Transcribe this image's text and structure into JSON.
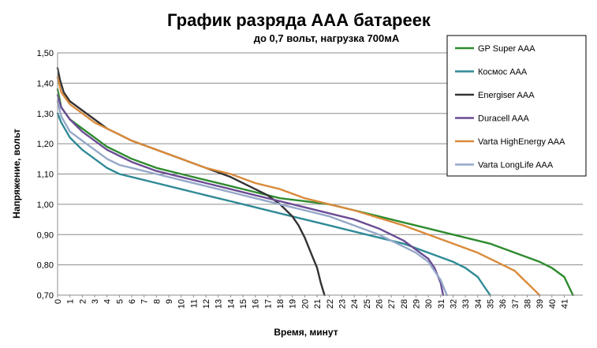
{
  "chart_data": {
    "type": "line",
    "title": "График разряда ААА батареек",
    "subtitle": "до 0,7 вольт, нагрузка 700мА",
    "xlabel": "Время, минут",
    "ylabel": "Напряжение, вольт",
    "xlim": [
      0,
      42.5
    ],
    "ylim": [
      0.7,
      1.5
    ],
    "ytick_step": 0.1,
    "y_tick_labels": [
      "0,70",
      "0,80",
      "0,90",
      "1,00",
      "1,10",
      "1,20",
      "1,30",
      "1,40",
      "1,50"
    ],
    "x_tick_labels": [
      "0",
      "1",
      "2",
      "3",
      "4",
      "5",
      "6",
      "7",
      "8",
      "9",
      "10",
      "11",
      "12",
      "13",
      "14",
      "15",
      "16",
      "17",
      "18",
      "19",
      "20",
      "21",
      "22",
      "23",
      "24",
      "25",
      "26",
      "27",
      "28",
      "29",
      "30",
      "31",
      "32",
      "33",
      "34",
      "35",
      "36",
      "37",
      "38",
      "39",
      "40",
      "41"
    ],
    "grid": "horizontal",
    "legend_position": "top-right",
    "series": [
      {
        "name": "GP Super AAA",
        "color": "#2e8b2e",
        "x": [
          0,
          0.3,
          1,
          2,
          3,
          4,
          5,
          6,
          8,
          10,
          12,
          14,
          16,
          18,
          20,
          22,
          24,
          26,
          28,
          30,
          32,
          34,
          35,
          36,
          37,
          38,
          39,
          40,
          41,
          41.7
        ],
        "y": [
          1.38,
          1.32,
          1.28,
          1.25,
          1.22,
          1.19,
          1.17,
          1.15,
          1.12,
          1.1,
          1.08,
          1.06,
          1.04,
          1.02,
          1.01,
          1.0,
          0.98,
          0.96,
          0.94,
          0.92,
          0.9,
          0.88,
          0.87,
          0.855,
          0.84,
          0.825,
          0.81,
          0.79,
          0.76,
          0.7
        ]
      },
      {
        "name": "Космос AAA",
        "color": "#2f8a96",
        "x": [
          0,
          0.3,
          1,
          2,
          3,
          4,
          5,
          6,
          8,
          10,
          12,
          14,
          16,
          18,
          20,
          22,
          24,
          26,
          28,
          30,
          32,
          33,
          34,
          34.5,
          35
        ],
        "y": [
          1.3,
          1.27,
          1.22,
          1.18,
          1.15,
          1.12,
          1.1,
          1.09,
          1.07,
          1.05,
          1.03,
          1.01,
          0.99,
          0.97,
          0.95,
          0.93,
          0.91,
          0.89,
          0.87,
          0.84,
          0.81,
          0.79,
          0.76,
          0.73,
          0.7
        ]
      },
      {
        "name": "Energiser AAA",
        "color": "#333333",
        "x": [
          0,
          0.2,
          0.5,
          1,
          2,
          3,
          4,
          5,
          6,
          8,
          10,
          12,
          14,
          16,
          17,
          18,
          19,
          19.5,
          20,
          20.5,
          21,
          21.3,
          21.6
        ],
        "y": [
          1.45,
          1.41,
          1.37,
          1.34,
          1.31,
          1.28,
          1.25,
          1.23,
          1.21,
          1.18,
          1.15,
          1.12,
          1.09,
          1.05,
          1.03,
          1.0,
          0.96,
          0.93,
          0.89,
          0.84,
          0.79,
          0.74,
          0.7
        ]
      },
      {
        "name": "Duracell AAA",
        "color": "#6a4c93",
        "x": [
          0,
          0.3,
          1,
          2,
          3,
          4,
          5,
          6,
          8,
          10,
          12,
          14,
          16,
          18,
          20,
          22,
          24,
          26,
          28,
          29,
          30,
          30.5,
          31,
          31.2
        ],
        "y": [
          1.36,
          1.32,
          1.28,
          1.24,
          1.21,
          1.18,
          1.16,
          1.14,
          1.11,
          1.09,
          1.07,
          1.05,
          1.03,
          1.01,
          0.99,
          0.97,
          0.95,
          0.92,
          0.88,
          0.85,
          0.82,
          0.79,
          0.74,
          0.7
        ]
      },
      {
        "name": "Varta HighEnergy AAA",
        "color": "#d98a3a",
        "x": [
          0,
          0.3,
          1,
          2,
          3,
          4,
          5,
          6,
          8,
          10,
          12,
          14,
          16,
          18,
          20,
          22,
          24,
          26,
          28,
          30,
          32,
          34,
          35,
          36,
          37,
          37.5,
          38,
          38.5,
          39
        ],
        "y": [
          1.42,
          1.37,
          1.33,
          1.3,
          1.27,
          1.25,
          1.23,
          1.21,
          1.18,
          1.15,
          1.12,
          1.1,
          1.07,
          1.05,
          1.02,
          1.0,
          0.98,
          0.955,
          0.93,
          0.9,
          0.87,
          0.84,
          0.82,
          0.8,
          0.78,
          0.76,
          0.74,
          0.72,
          0.7
        ]
      },
      {
        "name": "Varta LongLife AAA",
        "color": "#95a8c9",
        "x": [
          0,
          0.3,
          1,
          2,
          3,
          4,
          5,
          6,
          7,
          8,
          10,
          12,
          14,
          16,
          18,
          20,
          22,
          24,
          26,
          28,
          29,
          30,
          31,
          31.5
        ],
        "y": [
          1.34,
          1.29,
          1.24,
          1.21,
          1.18,
          1.15,
          1.13,
          1.12,
          1.11,
          1.1,
          1.08,
          1.06,
          1.04,
          1.02,
          1.0,
          0.98,
          0.96,
          0.93,
          0.9,
          0.86,
          0.84,
          0.81,
          0.75,
          0.7
        ]
      }
    ]
  }
}
